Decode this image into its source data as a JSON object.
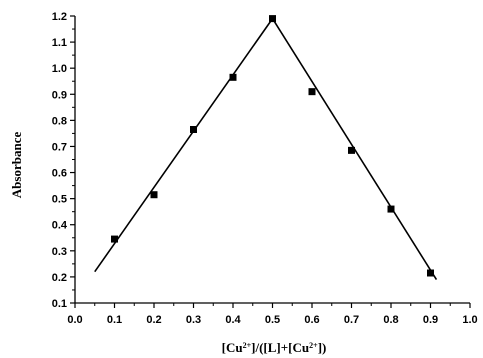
{
  "chart_data": {
    "type": "scatter",
    "title": "",
    "ylabel": "Absorbance",
    "xlabel": {
      "parts": [
        {
          "text": "[Cu",
          "sup": false
        },
        {
          "text": "2+",
          "sup": true
        },
        {
          "text": "]/([L]+[Cu",
          "sup": false
        },
        {
          "text": "2+",
          "sup": true
        },
        {
          "text": "])",
          "sup": false
        }
      ]
    },
    "xlim": [
      0.0,
      1.0
    ],
    "ylim": [
      0.1,
      1.2
    ],
    "x_ticks": [
      "0.0",
      "0.1",
      "0.2",
      "0.3",
      "0.4",
      "0.5",
      "0.6",
      "0.7",
      "0.8",
      "0.9",
      "1.0"
    ],
    "y_ticks": [
      "0.1",
      "0.2",
      "0.3",
      "0.4",
      "0.5",
      "0.6",
      "0.7",
      "0.8",
      "0.9",
      "1.0",
      "1.1",
      "1.2"
    ],
    "grid": false,
    "series": [
      {
        "marker": "square",
        "color": "#000000",
        "x": [
          0.1,
          0.2,
          0.3,
          0.4,
          0.5,
          0.6,
          0.7,
          0.8,
          0.9
        ],
        "y": [
          0.345,
          0.515,
          0.765,
          0.965,
          1.19,
          0.91,
          0.685,
          0.46,
          0.215
        ]
      }
    ],
    "fit_lines": [
      {
        "x": [
          0.05,
          0.5
        ],
        "y": [
          0.22,
          1.19
        ]
      },
      {
        "x": [
          0.5,
          0.915
        ],
        "y": [
          1.19,
          0.19
        ]
      }
    ]
  }
}
